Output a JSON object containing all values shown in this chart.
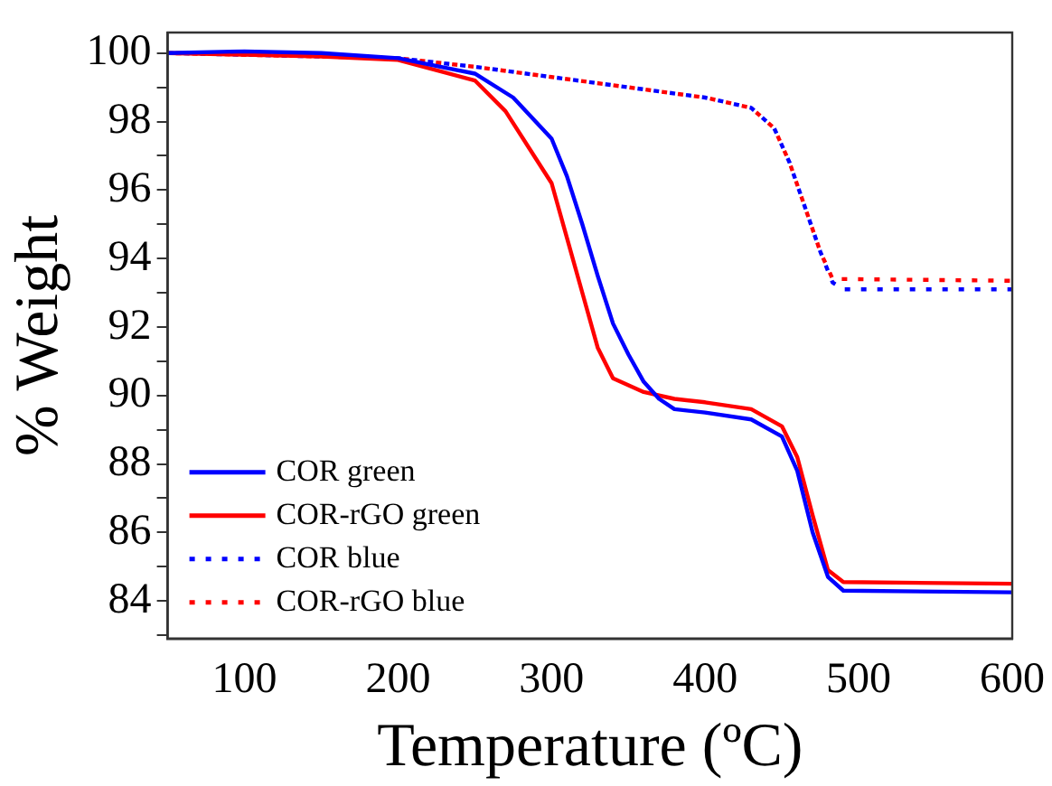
{
  "chart_data": {
    "type": "line",
    "xlabel": "Temperature (ºC)",
    "ylabel": "% Weight",
    "xlim": [
      50,
      600
    ],
    "xticks": [
      100,
      200,
      300,
      400,
      500,
      600
    ],
    "ylim": [
      82.9,
      100.6
    ],
    "yticks": [
      84,
      86,
      88,
      90,
      92,
      94,
      96,
      98,
      100
    ],
    "grid": false,
    "legend": "bottom left",
    "marker": "none",
    "series": [
      {
        "name": "COR green",
        "color": "#0000ff",
        "line_style": "solid",
        "x": [
          50,
          100,
          150,
          200,
          250,
          275,
          300,
          310,
          320,
          330,
          340,
          350,
          360,
          370,
          380,
          400,
          430,
          450,
          460,
          470,
          480,
          490,
          600
        ],
        "values": [
          100,
          100.05,
          100,
          99.85,
          99.4,
          98.7,
          97.5,
          96.4,
          95,
          93.5,
          92.1,
          91.2,
          90.4,
          89.9,
          89.6,
          89.5,
          89.3,
          88.8,
          87.8,
          86,
          84.7,
          84.3,
          84.25
        ]
      },
      {
        "name": "COR-rGO green",
        "color": "#ff0000",
        "line_style": "solid",
        "x": [
          50,
          100,
          150,
          200,
          250,
          270,
          290,
          300,
          310,
          320,
          330,
          340,
          360,
          380,
          400,
          430,
          450,
          460,
          470,
          480,
          490,
          600
        ],
        "values": [
          100,
          99.95,
          99.9,
          99.8,
          99.2,
          98.3,
          96.9,
          96.2,
          94.6,
          93,
          91.4,
          90.5,
          90.1,
          89.9,
          89.8,
          89.6,
          89.1,
          88.2,
          86.5,
          84.9,
          84.55,
          84.5
        ]
      },
      {
        "name": "COR blue",
        "color": "#0000ff",
        "line_style": "dotted",
        "x": [
          50,
          200,
          250,
          300,
          350,
          400,
          430,
          445,
          455,
          465,
          475,
          483,
          490,
          600
        ],
        "values": [
          100,
          99.85,
          99.6,
          99.3,
          99,
          98.7,
          98.4,
          97.8,
          96.8,
          95.5,
          94.2,
          93.3,
          93.1,
          93.1
        ]
      },
      {
        "name": "COR-rGO blue",
        "color": "#ff0000",
        "line_style": "dotted",
        "x": [
          50,
          200,
          250,
          300,
          350,
          400,
          430,
          445,
          455,
          465,
          475,
          483,
          490,
          600
        ],
        "values": [
          100,
          99.85,
          99.6,
          99.3,
          99,
          98.7,
          98.4,
          97.8,
          96.8,
          95.5,
          94.2,
          93.4,
          93.4,
          93.35
        ]
      }
    ]
  }
}
